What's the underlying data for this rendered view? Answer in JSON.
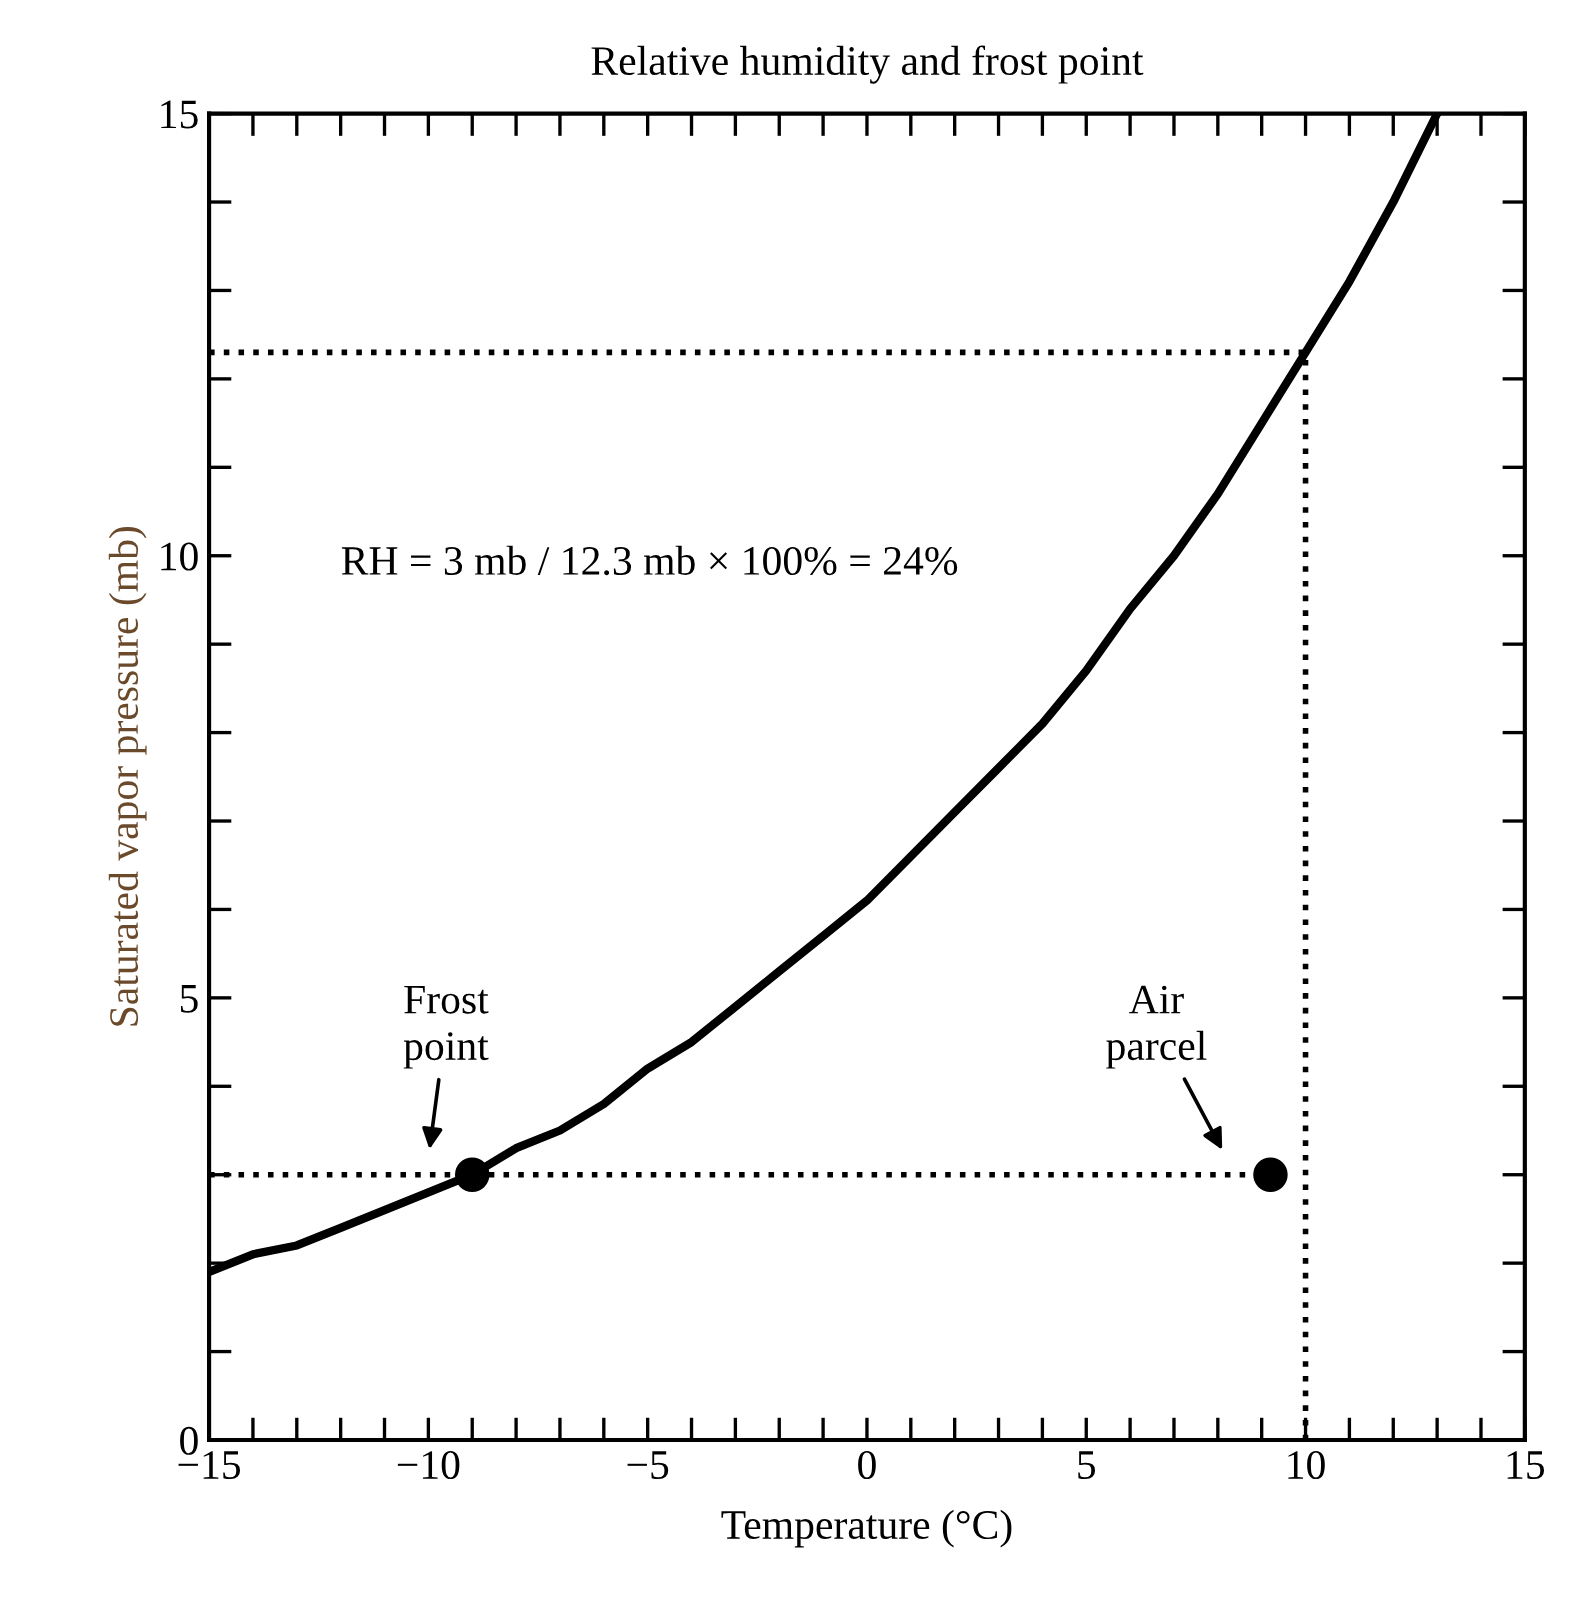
{
  "chart_data": {
    "type": "line",
    "title": "Relative humidity and frost point",
    "xlabel": "Temperature (°C)",
    "ylabel": "Saturated vapor pressure (mb)",
    "xlim": [
      -15,
      15
    ],
    "ylim": [
      0,
      15
    ],
    "xticks": [
      -15,
      {
        "value": -14,
        "label": null
      },
      {
        "value": -13,
        "label": null
      },
      {
        "value": -12,
        "label": null
      },
      {
        "value": -11,
        "label": null
      },
      -10,
      {
        "value": -9,
        "label": null
      },
      {
        "value": -8,
        "label": null
      },
      {
        "value": -7,
        "label": null
      },
      {
        "value": -6,
        "label": null
      },
      -5,
      {
        "value": -4,
        "label": null
      },
      {
        "value": -3,
        "label": null
      },
      {
        "value": -2,
        "label": null
      },
      {
        "value": -1,
        "label": null
      },
      0,
      {
        "value": 1,
        "label": null
      },
      {
        "value": 2,
        "label": null
      },
      {
        "value": 3,
        "label": null
      },
      {
        "value": 4,
        "label": null
      },
      5,
      {
        "value": 6,
        "label": null
      },
      {
        "value": 7,
        "label": null
      },
      {
        "value": 8,
        "label": null
      },
      {
        "value": 9,
        "label": null
      },
      10,
      {
        "value": 11,
        "label": null
      },
      {
        "value": 12,
        "label": null
      },
      {
        "value": 13,
        "label": null
      },
      {
        "value": 14,
        "label": null
      },
      15
    ],
    "yticks": [
      0,
      {
        "value": 1,
        "label": null
      },
      {
        "value": 2,
        "label": null
      },
      {
        "value": 3,
        "label": null
      },
      {
        "value": 4,
        "label": null
      },
      5,
      {
        "value": 6,
        "label": null
      },
      {
        "value": 7,
        "label": null
      },
      {
        "value": 8,
        "label": null
      },
      {
        "value": 9,
        "label": null
      },
      10,
      {
        "value": 11,
        "label": null
      },
      {
        "value": 12,
        "label": null
      },
      {
        "value": 13,
        "label": null
      },
      {
        "value": 14,
        "label": null
      },
      15
    ],
    "grid": false,
    "legend": false,
    "series": [
      {
        "color": "#000000",
        "line_style": "solid",
        "x": [
          -15,
          -14,
          -13,
          -12,
          -11,
          -10,
          -9,
          -8,
          -7,
          -6,
          -5,
          -4,
          -3,
          -2,
          -1,
          0,
          1,
          2,
          3,
          4,
          5,
          6,
          7,
          8,
          9,
          10,
          11,
          12,
          13
        ],
        "values": [
          1.9,
          2.1,
          2.2,
          2.4,
          2.6,
          2.8,
          3.0,
          3.3,
          3.5,
          3.8,
          4.2,
          4.5,
          4.9,
          5.3,
          5.7,
          6.1,
          6.6,
          7.1,
          7.6,
          8.1,
          8.7,
          9.4,
          10.0,
          10.7,
          11.5,
          12.3,
          13.1,
          14.0,
          15.0
        ]
      },
      {
        "type": "line",
        "color": "#000000",
        "line_style": "dotted",
        "x": [
          -15,
          10,
          10
        ],
        "values": [
          12.3,
          12.3,
          0
        ]
      },
      {
        "type": "line",
        "color": "#000000",
        "line_style": "dotted",
        "x": [
          -15,
          9.2
        ],
        "values": [
          3,
          3
        ]
      },
      {
        "type": "scatter",
        "color": "#000000",
        "marker": "circle",
        "x": [
          -9,
          9.2
        ],
        "values": [
          3,
          3
        ]
      }
    ],
    "annotations": [
      "Frost\npoint",
      "Air\nparcel",
      "RH = 3 mb / 12.3 mb × 100% = 24%"
    ]
  }
}
